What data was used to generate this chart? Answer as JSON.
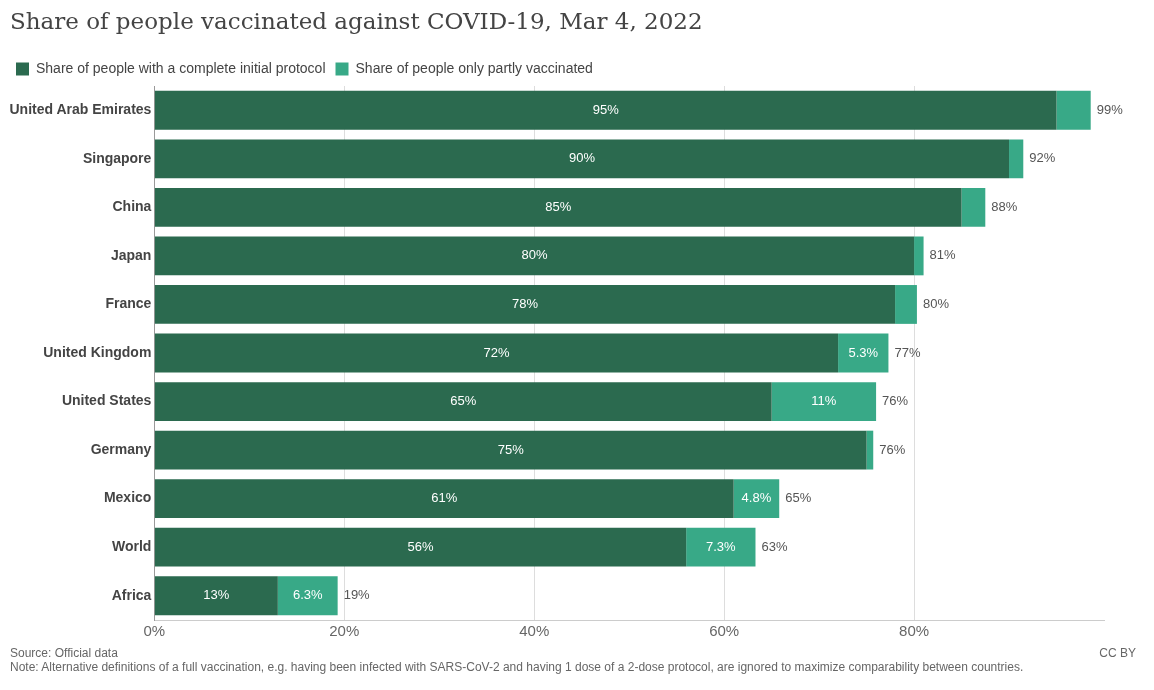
{
  "chart_data": {
    "type": "bar",
    "orientation": "horizontal",
    "stacked": true,
    "title": "Share of people vaccinated against COVID-19, Mar 4, 2022",
    "categories": [
      "United Arab Emirates",
      "Singapore",
      "China",
      "Japan",
      "France",
      "United Kingdom",
      "United States",
      "Germany",
      "Mexico",
      "World",
      "Africa"
    ],
    "series": [
      {
        "name": "Share of people with a complete initial protocol",
        "color": "#2b6a4f",
        "values": [
          95,
          90,
          85,
          80,
          78,
          72,
          65,
          75,
          61,
          56,
          13
        ],
        "value_labels": [
          "95%",
          "90%",
          "85%",
          "80%",
          "78%",
          "72%",
          "65%",
          "75%",
          "61%",
          "56%",
          "13%"
        ]
      },
      {
        "name": "Share of people only partly vaccinated",
        "color": "#38a987",
        "values": [
          3.6,
          1.5,
          2.5,
          1,
          2.3,
          5.3,
          11,
          0.7,
          4.8,
          7.3,
          6.3
        ],
        "value_labels": [
          null,
          null,
          null,
          null,
          null,
          "5.3%",
          "11%",
          null,
          "4.8%",
          "7.3%",
          "6.3%"
        ]
      }
    ],
    "totals": [
      "99%",
      "92%",
      "88%",
      "81%",
      "80%",
      "77%",
      "76%",
      "76%",
      "65%",
      "63%",
      "19%"
    ],
    "xlim": [
      0,
      100
    ],
    "xticks": [
      {
        "value": 0,
        "label": "0%"
      },
      {
        "value": 20,
        "label": "20%"
      },
      {
        "value": 40,
        "label": "40%"
      },
      {
        "value": 60,
        "label": "60%"
      },
      {
        "value": 80,
        "label": "80%"
      }
    ],
    "grid": "x",
    "legend": "top left",
    "annotations": [
      "Source: Official data",
      "Note: Alternative definitions of a full vaccination, e.g. having been infected with SARS-CoV-2 and having 1 dose of a 2-dose protocol, are ignored to maximize comparability between countries.",
      "CC BY"
    ]
  }
}
